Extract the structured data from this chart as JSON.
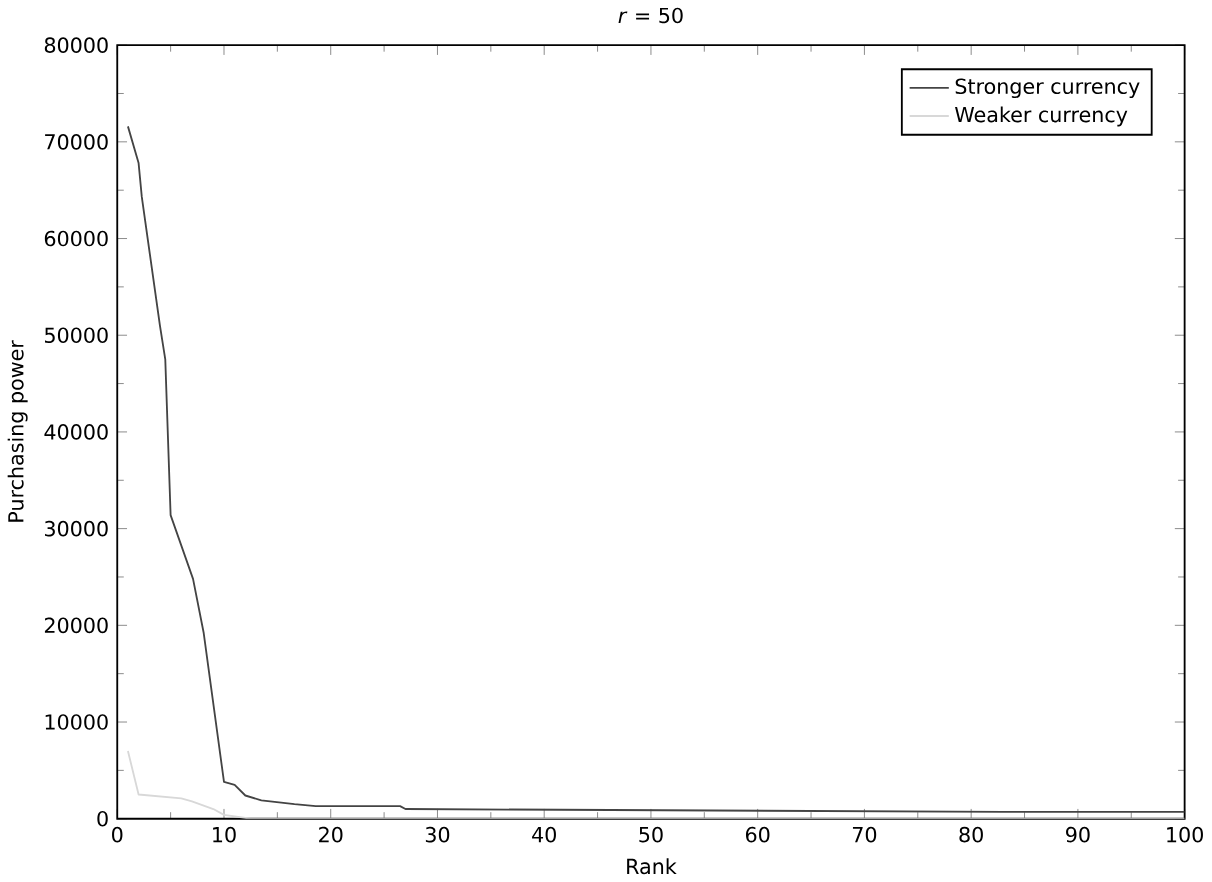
{
  "chart_data": {
    "type": "line",
    "title": "*r* = 50",
    "xlabel": "Rank",
    "ylabel": "Purchasing power",
    "xlim": [
      0,
      100
    ],
    "ylim": [
      0,
      80000
    ],
    "xticks": [
      0,
      10,
      20,
      30,
      40,
      50,
      60,
      70,
      80,
      90,
      100
    ],
    "yticks": [
      0,
      10000,
      20000,
      30000,
      40000,
      50000,
      60000,
      70000,
      80000
    ],
    "grid": false,
    "legend": "top right",
    "marker": "none",
    "line_style": "solid",
    "series": [
      {
        "name": "Stronger currency",
        "color": "#444444",
        "x": [
          1,
          2,
          2.3,
          4,
          4.5,
          5,
          7.1,
          8.1,
          10,
          11,
          12,
          13.5,
          16.6,
          18.6,
          26.5,
          27,
          83,
          100
        ],
        "values": [
          71600,
          67800,
          64300,
          51000,
          47500,
          31400,
          24800,
          19200,
          3800,
          3500,
          2400,
          1900,
          1500,
          1300,
          1300,
          1000,
          700,
          700
        ]
      },
      {
        "name": "Weaker currency",
        "color": "#d8d8d8",
        "x": [
          1,
          2,
          6,
          7,
          9,
          10,
          12.5,
          100
        ],
        "values": [
          7000,
          2500,
          2100,
          1800,
          1000,
          400,
          0,
          0
        ]
      }
    ]
  }
}
